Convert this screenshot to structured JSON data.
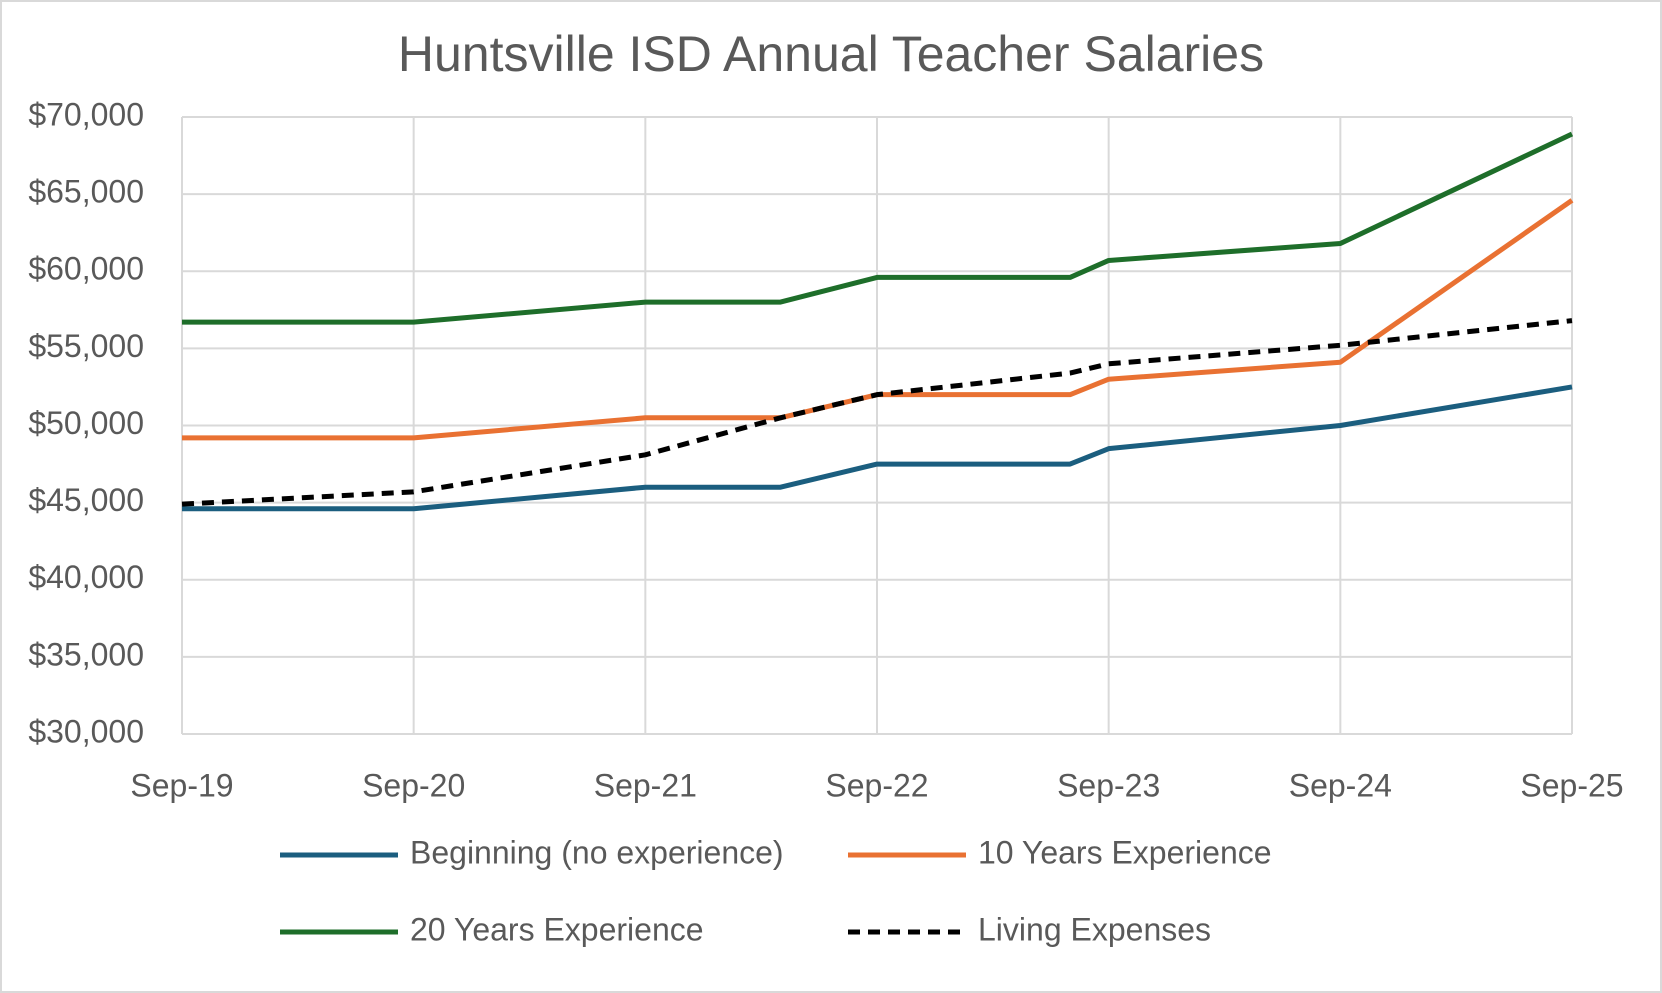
{
  "chart_data": {
    "type": "line",
    "title": "Huntsville ISD Annual Teacher Salaries",
    "x": [
      "2019-09",
      "2020-09",
      "2021-09",
      "2022-04",
      "2022-09",
      "2023-07",
      "2023-09",
      "2024-09",
      "2025-09"
    ],
    "xlim": [
      "2019-09",
      "2025-09"
    ],
    "xticks": [
      {
        "value": "2019-09",
        "label": "Sep-19"
      },
      {
        "value": "2020-09",
        "label": "Sep-20"
      },
      {
        "value": "2021-09",
        "label": "Sep-21"
      },
      {
        "value": "2022-09",
        "label": "Sep-22"
      },
      {
        "value": "2023-09",
        "label": "Sep-23"
      },
      {
        "value": "2024-09",
        "label": "Sep-24"
      },
      {
        "value": "2025-09",
        "label": "Sep-25"
      }
    ],
    "ylim": [
      30000,
      70000
    ],
    "yticks": [
      {
        "value": 30000,
        "label": "$30,000"
      },
      {
        "value": 35000,
        "label": "$35,000"
      },
      {
        "value": 40000,
        "label": "$40,000"
      },
      {
        "value": 45000,
        "label": "$45,000"
      },
      {
        "value": 50000,
        "label": "$50,000"
      },
      {
        "value": 55000,
        "label": "$55,000"
      },
      {
        "value": 60000,
        "label": "$60,000"
      },
      {
        "value": 65000,
        "label": "$65,000"
      },
      {
        "value": 70000,
        "label": "$70,000"
      }
    ],
    "grid": true,
    "legend": "bottom",
    "series": [
      {
        "name": "Beginning (no experience)",
        "color": "#1b5e7f",
        "dashed": false,
        "values": [
          44600,
          44600,
          46000,
          46000,
          47500,
          47500,
          48500,
          50000,
          52500
        ]
      },
      {
        "name": "10 Years Experience",
        "color": "#e97132",
        "dashed": false,
        "values": [
          49200,
          49200,
          50500,
          50500,
          52000,
          52000,
          53000,
          54100,
          64600
        ]
      },
      {
        "name": "20 Years Experience",
        "color": "#1e6e2a",
        "dashed": false,
        "values": [
          56700,
          56700,
          58000,
          58000,
          59600,
          59600,
          60700,
          61800,
          68900
        ]
      },
      {
        "name": "Living Expenses",
        "color": "#000000",
        "dashed": true,
        "values": [
          44900,
          45700,
          48100,
          50500,
          52000,
          53400,
          54000,
          55200,
          56800
        ]
      }
    ]
  }
}
